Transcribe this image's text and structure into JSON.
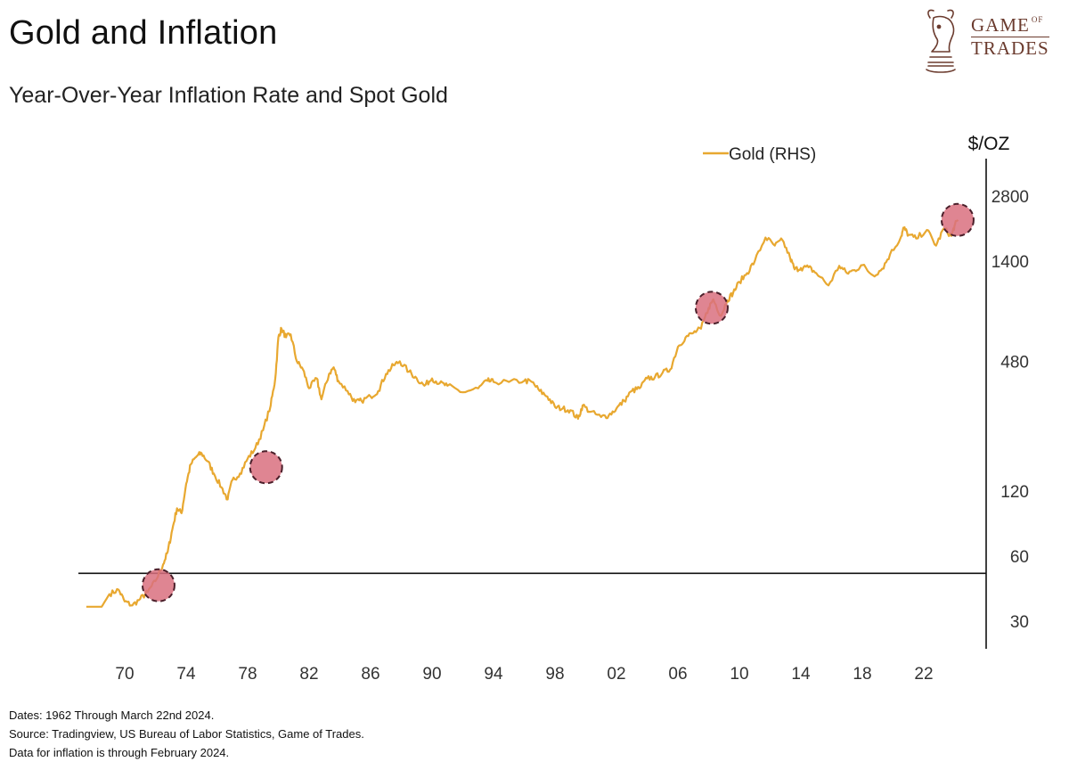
{
  "header": {
    "title": "Gold and Inflation",
    "subtitle": "Year-Over-Year Inflation Rate and Spot Gold"
  },
  "logo": {
    "line1": "GAME",
    "line1_small": "OF",
    "line2": "TRADES",
    "icon": "bull-chess-knight-icon",
    "color": "#6b3b2e"
  },
  "footer": {
    "dates": "Dates: 1962 Through March 22nd 2024.",
    "source": "Source: Tradingview, US Bureau of Labor Statistics, Game of Trades.",
    "note": "Data for inflation is through February 2024."
  },
  "chart_data": {
    "type": "line",
    "x_ticks": [
      "70",
      "74",
      "78",
      "82",
      "86",
      "90",
      "94",
      "98",
      "02",
      "06",
      "10",
      "14",
      "18",
      "22"
    ],
    "x_tick_years": [
      1970,
      1974,
      1978,
      1982,
      1986,
      1990,
      1994,
      1998,
      2002,
      2006,
      2010,
      2014,
      2018,
      2022
    ],
    "y_unit": "$/OZ",
    "y_ticks": [
      30,
      60,
      120,
      480,
      1400,
      2800
    ],
    "y_scale": "log",
    "y_axis_side": "right",
    "x_range": [
      1967.5,
      2025.5
    ],
    "y_range": [
      25,
      4000
    ],
    "reference_line": 50,
    "legend": {
      "label": "Gold (RHS)",
      "placement": "top-center"
    },
    "series": [
      {
        "name": "Gold (RHS)",
        "color": "#e8a830",
        "points": [
          [
            1967.5,
            35
          ],
          [
            1968.5,
            35
          ],
          [
            1969.0,
            40
          ],
          [
            1969.6,
            42
          ],
          [
            1970.0,
            37
          ],
          [
            1970.5,
            35.5
          ],
          [
            1971.0,
            38
          ],
          [
            1971.5,
            41
          ],
          [
            1972.0,
            46
          ],
          [
            1972.5,
            55
          ],
          [
            1972.8,
            63
          ],
          [
            1973.1,
            80
          ],
          [
            1973.4,
            100
          ],
          [
            1973.7,
            95
          ],
          [
            1974.0,
            130
          ],
          [
            1974.3,
            160
          ],
          [
            1974.7,
            175
          ],
          [
            1975.0,
            180
          ],
          [
            1975.4,
            165
          ],
          [
            1975.8,
            145
          ],
          [
            1976.3,
            125
          ],
          [
            1976.7,
            110
          ],
          [
            1977.0,
            135
          ],
          [
            1977.5,
            145
          ],
          [
            1978.0,
            170
          ],
          [
            1978.5,
            190
          ],
          [
            1979.0,
            230
          ],
          [
            1979.5,
            300
          ],
          [
            1979.8,
            400
          ],
          [
            1980.0,
            620
          ],
          [
            1980.2,
            680
          ],
          [
            1980.5,
            620
          ],
          [
            1980.8,
            640
          ],
          [
            1981.2,
            480
          ],
          [
            1981.6,
            440
          ],
          [
            1982.0,
            360
          ],
          [
            1982.5,
            400
          ],
          [
            1982.8,
            320
          ],
          [
            1983.3,
            420
          ],
          [
            1983.6,
            450
          ],
          [
            1983.9,
            390
          ],
          [
            1984.5,
            350
          ],
          [
            1985.0,
            310
          ],
          [
            1985.4,
            315
          ],
          [
            1986.0,
            330
          ],
          [
            1986.5,
            350
          ],
          [
            1987.0,
            420
          ],
          [
            1987.5,
            460
          ],
          [
            1987.9,
            480
          ],
          [
            1988.5,
            430
          ],
          [
            1989.0,
            400
          ],
          [
            1989.5,
            370
          ],
          [
            1990.0,
            400
          ],
          [
            1990.5,
            380
          ],
          [
            1991.0,
            370
          ],
          [
            1992.0,
            345
          ],
          [
            1993.0,
            360
          ],
          [
            1993.6,
            390
          ],
          [
            1994.0,
            385
          ],
          [
            1995.0,
            385
          ],
          [
            1996.0,
            390
          ],
          [
            1996.5,
            385
          ],
          [
            1997.0,
            350
          ],
          [
            1997.5,
            330
          ],
          [
            1998.0,
            295
          ],
          [
            1998.5,
            290
          ],
          [
            1999.0,
            285
          ],
          [
            1999.5,
            260
          ],
          [
            1999.8,
            300
          ],
          [
            2000.3,
            280
          ],
          [
            2001.0,
            265
          ],
          [
            2001.5,
            270
          ],
          [
            2002.0,
            290
          ],
          [
            2002.5,
            315
          ],
          [
            2003.0,
            350
          ],
          [
            2003.5,
            360
          ],
          [
            2004.0,
            400
          ],
          [
            2004.5,
            405
          ],
          [
            2005.0,
            425
          ],
          [
            2005.5,
            440
          ],
          [
            2006.0,
            560
          ],
          [
            2006.5,
            620
          ],
          [
            2007.0,
            650
          ],
          [
            2007.5,
            680
          ],
          [
            2008.0,
            850
          ],
          [
            2008.3,
            930
          ],
          [
            2008.8,
            780
          ],
          [
            2009.2,
            920
          ],
          [
            2009.6,
            1000
          ],
          [
            2010.0,
            1120
          ],
          [
            2010.5,
            1230
          ],
          [
            2011.0,
            1400
          ],
          [
            2011.7,
            1800
          ],
          [
            2012.3,
            1650
          ],
          [
            2012.8,
            1750
          ],
          [
            2013.3,
            1450
          ],
          [
            2013.6,
            1280
          ],
          [
            2014.0,
            1300
          ],
          [
            2014.5,
            1310
          ],
          [
            2015.0,
            1230
          ],
          [
            2015.8,
            1080
          ],
          [
            2016.5,
            1330
          ],
          [
            2017.0,
            1230
          ],
          [
            2017.5,
            1270
          ],
          [
            2018.0,
            1340
          ],
          [
            2018.7,
            1200
          ],
          [
            2019.3,
            1290
          ],
          [
            2019.8,
            1500
          ],
          [
            2020.5,
            1800
          ],
          [
            2020.7,
            2000
          ],
          [
            2021.0,
            1850
          ],
          [
            2021.5,
            1780
          ],
          [
            2022.2,
            1950
          ],
          [
            2022.8,
            1650
          ],
          [
            2023.3,
            1980
          ],
          [
            2023.8,
            1830
          ],
          [
            2024.0,
            2040
          ],
          [
            2024.23,
            2170
          ]
        ]
      }
    ],
    "highlights": [
      {
        "x": 1972.2,
        "y": 44
      },
      {
        "x": 1979.2,
        "y": 155
      },
      {
        "x": 2008.2,
        "y": 850
      },
      {
        "x": 2024.2,
        "y": 2170
      }
    ],
    "highlight_color": "#d9707f"
  }
}
